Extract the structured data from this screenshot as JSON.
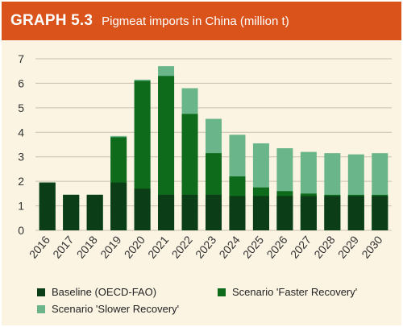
{
  "header": {
    "tag": "GRAPH 5.3",
    "title": "Pigmeat imports in China (million t)"
  },
  "colors": {
    "background": "#fbf4e3",
    "banner": "#d9531b",
    "baseline": "#0b3d17",
    "faster": "#0e6b1c",
    "slower": "#6ab58a",
    "grid": "#c9c2b0"
  },
  "chart_data": {
    "type": "bar",
    "stacked": false,
    "overlapping": true,
    "categories": [
      "2016",
      "2017",
      "2018",
      "2019",
      "2020",
      "2021",
      "2022",
      "2023",
      "2024",
      "2025",
      "2026",
      "2027",
      "2028",
      "2029",
      "2030"
    ],
    "series": [
      {
        "name": "Baseline (OECD-FAO)",
        "values": [
          1.95,
          1.45,
          1.45,
          1.95,
          1.7,
          1.45,
          1.45,
          1.45,
          1.4,
          1.4,
          1.4,
          1.4,
          1.4,
          1.4,
          1.4
        ]
      },
      {
        "name": "Scenario 'Faster Recovery'",
        "values": [
          1.95,
          1.45,
          1.45,
          3.8,
          6.1,
          6.3,
          4.75,
          3.15,
          2.2,
          1.75,
          1.6,
          1.5,
          1.45,
          1.45,
          1.45
        ]
      },
      {
        "name": "Scenario 'Slower Recovery'",
        "values": [
          1.95,
          1.45,
          1.45,
          3.85,
          6.15,
          6.7,
          5.8,
          4.55,
          3.9,
          3.55,
          3.35,
          3.2,
          3.15,
          3.1,
          3.15
        ]
      }
    ],
    "ylim": [
      0,
      7
    ],
    "yticks": [
      "0",
      "1",
      "2",
      "3",
      "4",
      "5",
      "6",
      "7"
    ],
    "grid": true,
    "legend_position": "bottom"
  }
}
